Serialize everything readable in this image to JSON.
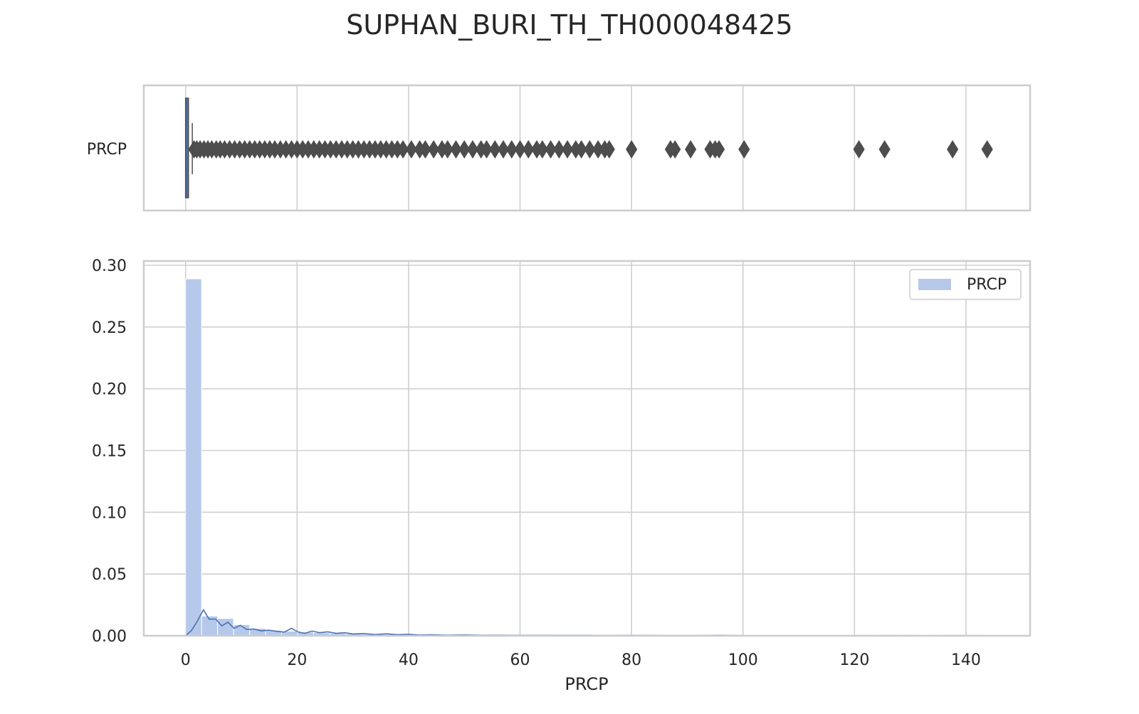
{
  "title": "SUPHAN_BURI_TH_TH000048425",
  "chart_data": [
    {
      "type": "box",
      "orientation": "horizontal",
      "category_label": "PRCP",
      "xlim": [
        -7.5,
        151.5
      ],
      "grid": true,
      "box": {
        "q1": 0.0,
        "median": 0.0,
        "q3": 0.5,
        "whisker_low": 0.0,
        "whisker_high": 1.2
      },
      "outliers": [
        1.5,
        2.0,
        2.6,
        3.3,
        4.0,
        4.7,
        5.5,
        6.2,
        7.0,
        7.9,
        8.8,
        9.7,
        10.6,
        11.5,
        12.4,
        13.3,
        14.2,
        15.1,
        16.0,
        17.0,
        18.0,
        19.0,
        20.0,
        21.0,
        22.0,
        23.0,
        24.0,
        25.0,
        26.0,
        27.0,
        28.0,
        29.0,
        30.0,
        31.0,
        32.0,
        33.0,
        34.0,
        35.0,
        36.0,
        37.0,
        38.0,
        39.0,
        40.5,
        42.0,
        43.0,
        44.5,
        46.0,
        47.0,
        48.5,
        50.0,
        51.5,
        53.0,
        54.0,
        55.5,
        57.0,
        58.5,
        60.0,
        61.5,
        63.0,
        64.0,
        65.5,
        67.0,
        68.5,
        70.0,
        71.0,
        72.5,
        74.0,
        75.2,
        76.0,
        80.0,
        87.0,
        87.8,
        90.6,
        94.1,
        95.0,
        95.7,
        100.2,
        120.8,
        125.4,
        137.6,
        143.8
      ]
    },
    {
      "type": "histogram",
      "xlabel": "PRCP",
      "ylabel": "",
      "xlim": [
        -7.5,
        151.5
      ],
      "ylim": [
        0.0,
        0.3
      ],
      "grid": true,
      "legend": {
        "placement": "top-right",
        "entries": [
          "PRCP"
        ]
      },
      "x_ticks": [
        "0",
        "20",
        "40",
        "60",
        "80",
        "100",
        "120",
        "140"
      ],
      "y_ticks": [
        "0.00",
        "0.05",
        "0.10",
        "0.15",
        "0.20",
        "0.25",
        "0.30"
      ],
      "bin_width": 2.87,
      "bin_start": 0.0,
      "bin_heights": [
        0.289,
        0.016,
        0.014,
        0.009,
        0.006,
        0.0045,
        0.0038,
        0.003,
        0.0025,
        0.002,
        0.0016,
        0.0014,
        0.0012,
        0.001,
        0.0009,
        0.0008,
        0.0007,
        0.0006,
        0.0005,
        0.0005,
        0.0004,
        0.0004,
        0.0003,
        0.0003,
        0.0003,
        0.0002,
        0.0002,
        0.0002,
        0.0002,
        0.0001,
        0.0001,
        0.0001,
        0.0001,
        0.0001,
        0.0001,
        0.0001,
        0.0001,
        0.0001,
        0.0001,
        0.0001,
        0.0001,
        0.0001,
        0.0001,
        0.0001,
        0.0001,
        0.0001,
        0.0001,
        0.0001,
        0.0001,
        0.0001
      ],
      "kde": {
        "x": [
          0.0,
          1.0,
          2.0,
          3.2,
          4.2,
          5.4,
          6.5,
          7.6,
          8.7,
          9.8,
          11.0,
          12.2,
          13.5,
          15.0,
          16.5,
          17.7,
          19.0,
          20.2,
          21.4,
          22.7,
          24.0,
          25.5,
          27.0,
          28.5,
          30.0,
          32.0,
          34.0,
          36.0,
          38.0,
          40.0,
          42.0,
          44.0,
          47.0,
          50.0,
          53.0,
          56.0,
          60.0,
          64.0,
          68.0,
          72.0,
          76.0,
          80.0,
          86.0,
          92.0,
          96.0,
          100.0,
          110.0,
          120.0,
          126.0,
          132.0,
          138.0,
          144.0
        ],
        "y": [
          0.0,
          0.004,
          0.011,
          0.021,
          0.0135,
          0.0135,
          0.008,
          0.011,
          0.006,
          0.0085,
          0.005,
          0.0055,
          0.004,
          0.0045,
          0.0035,
          0.003,
          0.006,
          0.003,
          0.002,
          0.0038,
          0.0025,
          0.0032,
          0.002,
          0.0025,
          0.0015,
          0.0018,
          0.001,
          0.0016,
          0.0009,
          0.0012,
          0.0006,
          0.0008,
          0.0005,
          0.0007,
          0.0004,
          0.0005,
          0.0003,
          0.0004,
          0.0003,
          0.0003,
          0.0002,
          0.0003,
          0.0002,
          0.0002,
          0.0004,
          0.0001,
          0.0001,
          0.0001,
          0.0002,
          0.0001,
          0.0002,
          0.0001
        ]
      }
    }
  ],
  "colors": {
    "hist_fill": "#b6c9ea",
    "kde_line": "#4c72b0",
    "box_fill": "#4c72b0",
    "outlier": "#4d4d4d",
    "grid": "#cfcfcf",
    "frame": "#cccccc",
    "text": "#262626"
  }
}
